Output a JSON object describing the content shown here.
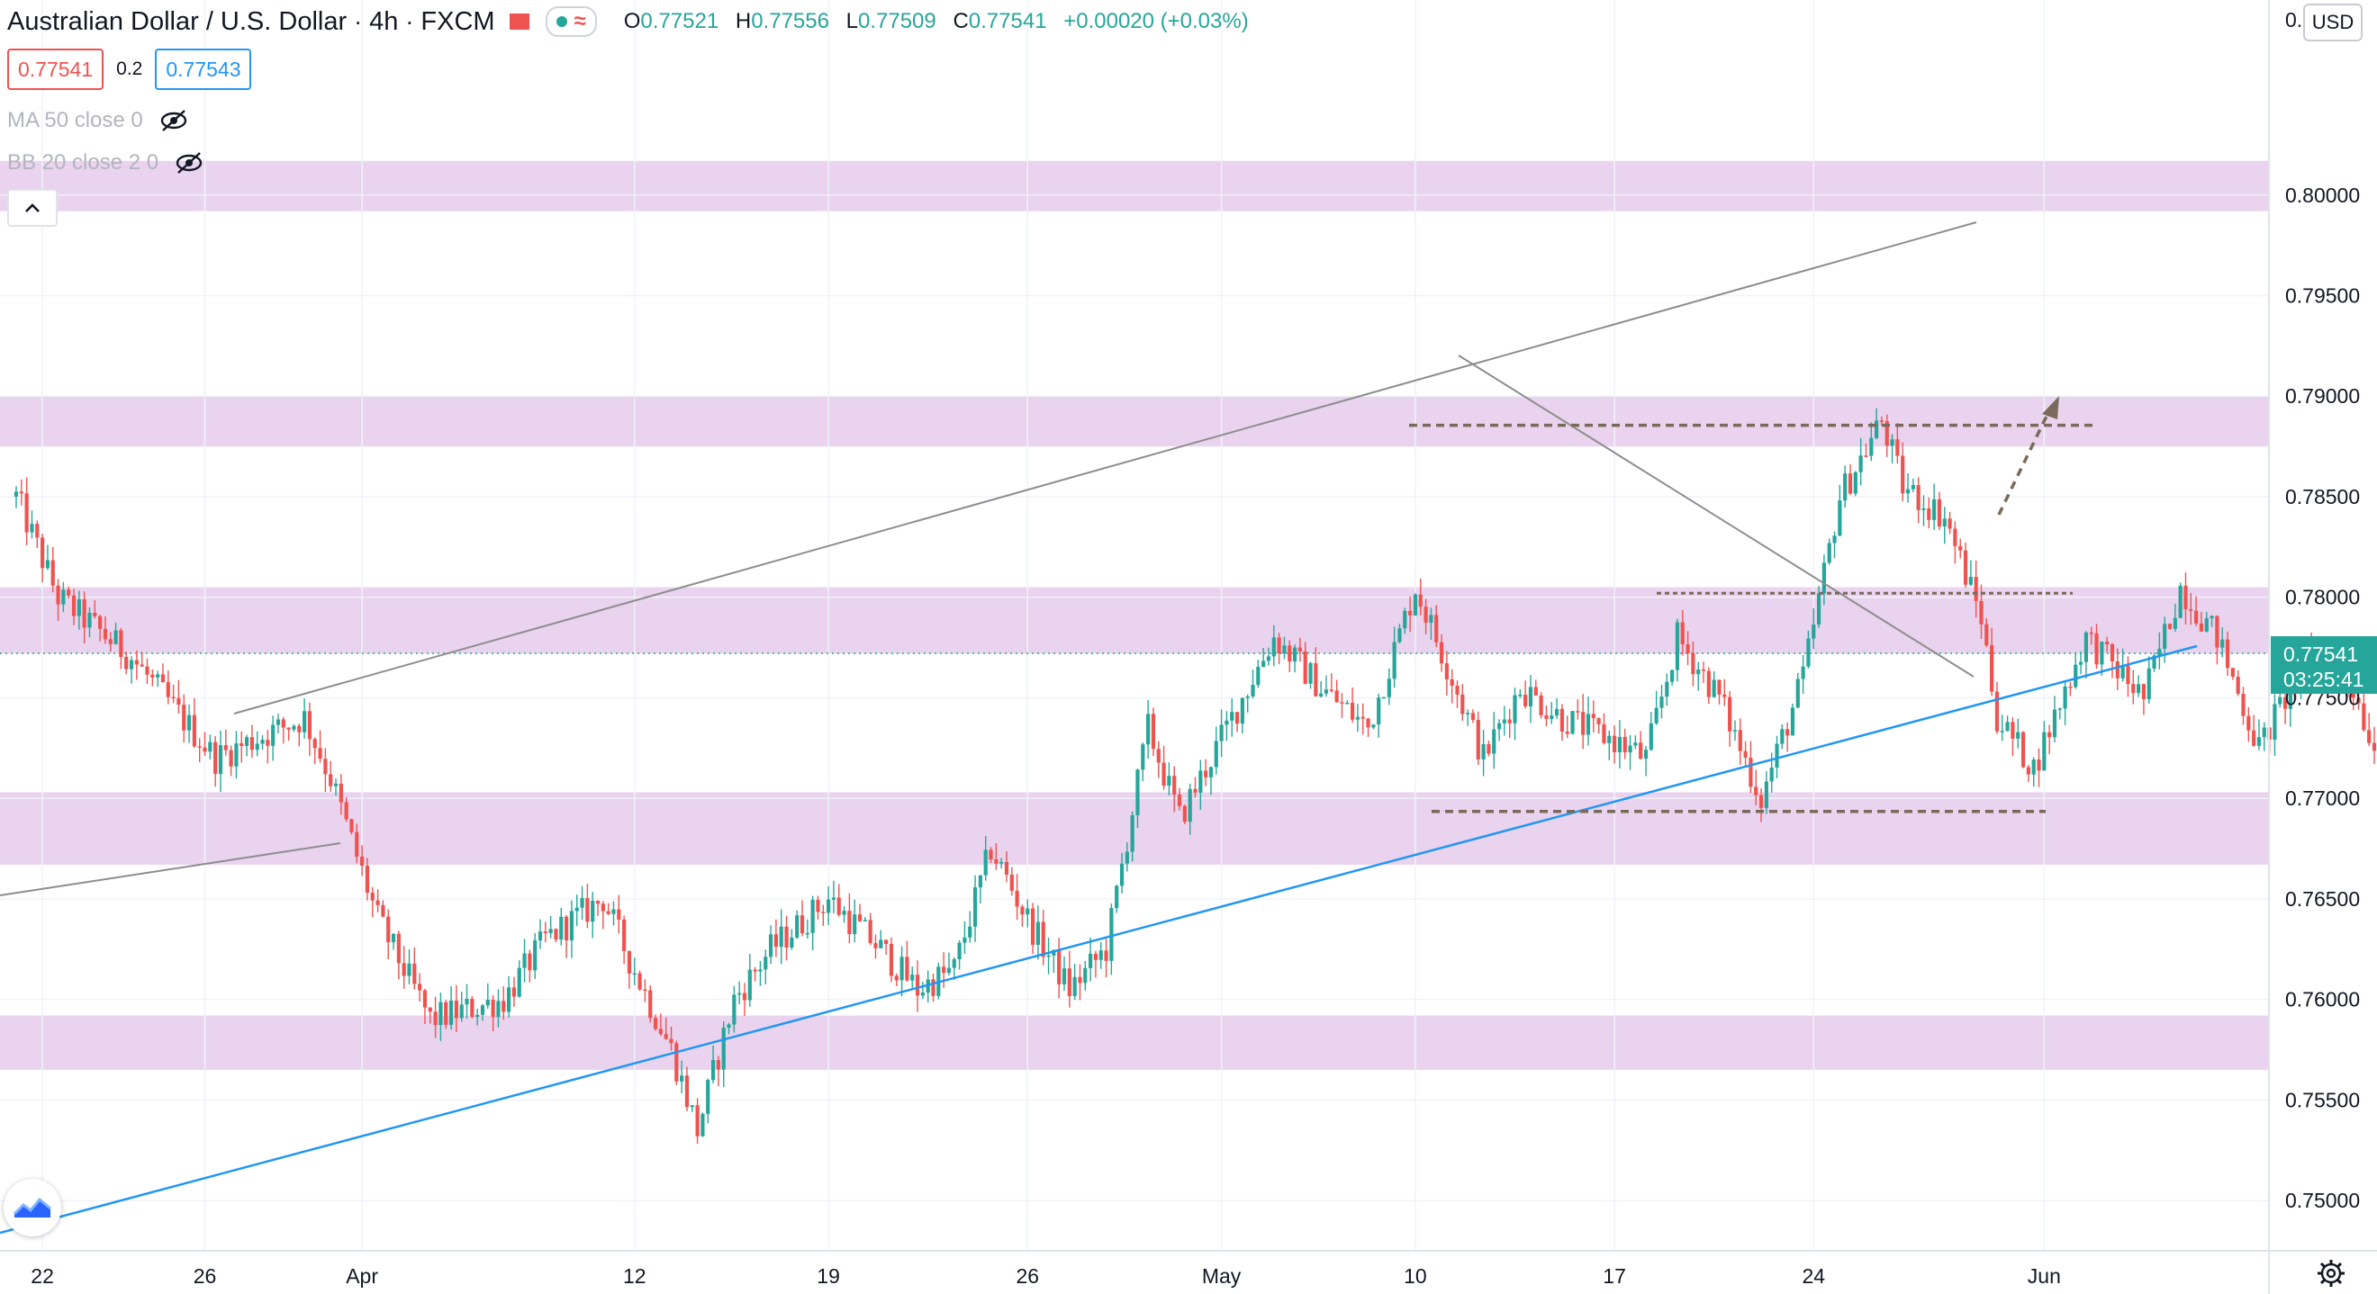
{
  "header": {
    "title": "Australian Dollar / U.S. Dollar",
    "interval": "4h",
    "exchange": "FXCM",
    "ohlc": {
      "o_label": "O",
      "o": "0.77521",
      "h_label": "H",
      "h": "0.77556",
      "l_label": "L",
      "l": "0.77509",
      "c_label": "C",
      "c": "0.77541",
      "change": "+0.00020 (+0.03%)"
    }
  },
  "quote": {
    "sell": "0.77541",
    "spread": "0.2",
    "buy": "0.77543"
  },
  "indicators": [
    {
      "label": "MA 50 close 0"
    },
    {
      "label": "BB 20 close 2 0"
    }
  ],
  "currency_button": "USD",
  "price_label": {
    "price": "0.77541",
    "countdown": "03:25:41"
  },
  "colors": {
    "up": "#26a69a",
    "down": "#ef5350",
    "zone": "#e1c4e8",
    "trend_blue": "#2196f3",
    "trend_gray": "#8d8d8d",
    "level_brown": "#7a6a5a"
  },
  "chart_data": {
    "type": "candlestick",
    "symbol": "AUDUSD",
    "x_ticks": [
      "22",
      "26",
      "Apr",
      "12",
      "19",
      "26",
      "May",
      "10",
      "17",
      "24",
      "Jun"
    ],
    "y_ticks": [
      "0.80000",
      "0.79500",
      "0.79000",
      "0.78500",
      "0.78000",
      "0.77500",
      "0.77000",
      "0.76500",
      "0.76000",
      "0.75500",
      "0.75000"
    ],
    "y_top_tick_partial": "0.",
    "ylim": [
      0.7475,
      0.8097
    ],
    "grid": true,
    "current_price": 0.77541,
    "zones": [
      [
        0.7992,
        0.8017
      ],
      [
        0.7875,
        0.79
      ],
      [
        0.7772,
        0.7805
      ],
      [
        0.7667,
        0.7703
      ],
      [
        0.7565,
        0.7592
      ]
    ],
    "horizontal_levels": [
      0.78855,
      0.7802,
      0.76935
    ],
    "candle_path": [
      [
        0,
        0.785
      ],
      [
        8,
        0.78
      ],
      [
        22,
        0.777
      ],
      [
        38,
        0.772
      ],
      [
        46,
        0.773
      ],
      [
        55,
        0.774
      ],
      [
        60,
        0.771
      ],
      [
        69,
        0.764
      ],
      [
        79,
        0.759
      ],
      [
        93,
        0.76
      ],
      [
        101,
        0.763
      ],
      [
        112,
        0.765
      ],
      [
        117,
        0.762
      ],
      [
        125,
        0.7575
      ],
      [
        130,
        0.7535
      ],
      [
        137,
        0.76
      ],
      [
        144,
        0.7625
      ],
      [
        155,
        0.765
      ],
      [
        165,
        0.7625
      ],
      [
        172,
        0.7605
      ],
      [
        179,
        0.7615
      ],
      [
        186,
        0.7675
      ],
      [
        194,
        0.7635
      ],
      [
        201,
        0.7605
      ],
      [
        208,
        0.7625
      ],
      [
        216,
        0.7735
      ],
      [
        222,
        0.769
      ],
      [
        231,
        0.7735
      ],
      [
        240,
        0.778
      ],
      [
        249,
        0.7755
      ],
      [
        258,
        0.7735
      ],
      [
        267,
        0.7805
      ],
      [
        274,
        0.776
      ],
      [
        280,
        0.772
      ],
      [
        287,
        0.7755
      ],
      [
        295,
        0.774
      ],
      [
        304,
        0.773
      ],
      [
        311,
        0.772
      ],
      [
        317,
        0.778
      ],
      [
        325,
        0.775
      ],
      [
        333,
        0.77
      ],
      [
        341,
        0.776
      ],
      [
        348,
        0.785
      ],
      [
        356,
        0.7888
      ],
      [
        360,
        0.7855
      ],
      [
        368,
        0.784
      ],
      [
        375,
        0.779
      ],
      [
        378,
        0.774
      ],
      [
        385,
        0.7715
      ],
      [
        395,
        0.778
      ],
      [
        406,
        0.775
      ],
      [
        413,
        0.7805
      ],
      [
        420,
        0.778
      ],
      [
        428,
        0.7725
      ],
      [
        437,
        0.777
      ],
      [
        444,
        0.777
      ],
      [
        450,
        0.7725
      ],
      [
        458,
        0.773
      ],
      [
        464,
        0.775
      ],
      [
        473,
        0.7754
      ]
    ]
  }
}
